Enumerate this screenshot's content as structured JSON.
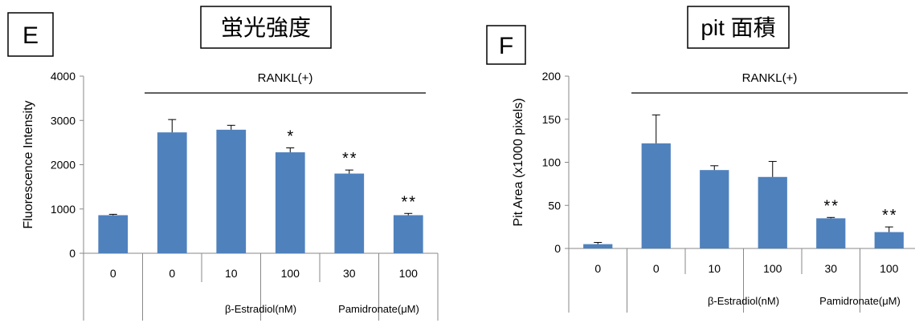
{
  "chart_data": [
    {
      "type": "bar",
      "panel_label": "E",
      "title": "蛍光強度",
      "ylabel": "Fluorescence Intensity",
      "xlabel": "",
      "ylim": [
        0,
        4000
      ],
      "yticks": [
        0,
        1000,
        2000,
        3000,
        4000
      ],
      "categories": [
        "0",
        "0",
        "10",
        "100",
        "30",
        "100"
      ],
      "values": [
        860,
        2730,
        2790,
        2280,
        1800,
        860
      ],
      "errors": [
        20,
        290,
        100,
        100,
        80,
        40
      ],
      "significance": [
        "",
        "",
        "",
        "*",
        "**",
        "**"
      ],
      "bracket_label": "RANKL(+)",
      "groups": [
        {
          "label": "β-Estradiol(nM)",
          "from": 2,
          "to": 3
        },
        {
          "label": "Pamidronate(μM)",
          "from": 4,
          "to": 5
        }
      ],
      "grid": false,
      "bar_color": "#4f81bd"
    },
    {
      "type": "bar",
      "panel_label": "F",
      "title": "pit 面積",
      "ylabel": "Pit Area (x1000 pixels)",
      "xlabel": "",
      "ylim": [
        0,
        200
      ],
      "yticks": [
        0,
        50,
        100,
        150,
        200
      ],
      "categories": [
        "0",
        "0",
        "10",
        "100",
        "30",
        "100"
      ],
      "values": [
        5,
        122,
        91,
        83,
        35,
        19
      ],
      "errors": [
        2,
        33,
        5,
        18,
        1,
        6
      ],
      "significance": [
        "",
        "",
        "",
        "",
        "**",
        "**"
      ],
      "bracket_label": "RANKL(+)",
      "groups": [
        {
          "label": "β-Estradiol(nM)",
          "from": 2,
          "to": 3
        },
        {
          "label": "Pamidronate(μM)",
          "from": 4,
          "to": 5
        }
      ],
      "grid": false,
      "bar_color": "#4f81bd"
    }
  ]
}
